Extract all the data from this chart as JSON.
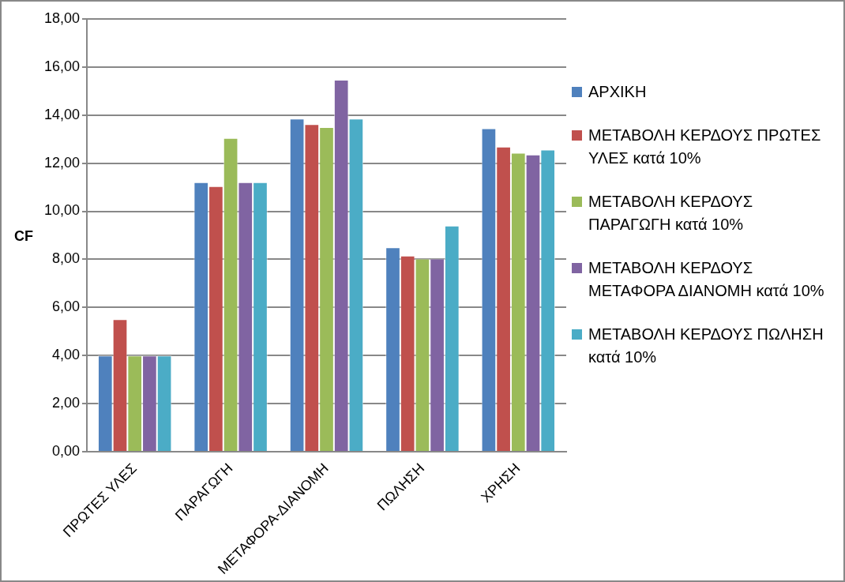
{
  "chart_data": {
    "type": "bar",
    "ylabel": "CF",
    "categories": [
      "ΠΡΩΤΕΣ ΥΛΕΣ",
      "ΠΑΡΑΓΩΓΗ",
      "ΜΕΤΑΦΟΡΑ-ΔΙΑΝΟΜΗ",
      "ΠΩΛΗΣΗ",
      "ΧΡΗΣΗ"
    ],
    "series": [
      {
        "name": "ΑΡΧΙΚΗ",
        "color": "#4f81bd",
        "values": [
          4.0,
          11.21,
          13.85,
          8.5,
          13.45
        ]
      },
      {
        "name": "ΜΕΤΑΒΟΛΗ ΚΕΡΔΟΥΣ ΠΡΩΤΕΣ ΥΛΕΣ κατά 10%",
        "color": "#c0504d",
        "values": [
          5.51,
          11.04,
          13.62,
          8.15,
          12.69
        ]
      },
      {
        "name": "ΜΕΤΑΒΟΛΗ ΚΕΡΔΟΥΣ ΠΑΡΑΓΩΓΗ κατά 10%",
        "color": "#9bbb59",
        "values": [
          4.0,
          13.05,
          13.5,
          8.03,
          12.43
        ]
      },
      {
        "name": "ΜΕΤΑΒΟΛΗ ΚΕΡΔΟΥΣ ΜΕΤΑΦΟΡΑ ΔΙΑΝΟΜΗ κατά 10%",
        "color": "#8064a2",
        "values": [
          4.0,
          11.21,
          15.47,
          8.03,
          12.36
        ]
      },
      {
        "name": "ΜΕΤΑΒΟΛΗ ΚΕΡΔΟΥΣ ΠΩΛΗΣΗ κατά 10%",
        "color": "#4bacc6",
        "values": [
          4.0,
          11.21,
          13.85,
          9.4,
          12.56
        ]
      }
    ],
    "ylim": [
      0,
      18
    ],
    "yticks": [
      {
        "value": 0,
        "label": "0,00"
      },
      {
        "value": 2,
        "label": "2,00"
      },
      {
        "value": 4,
        "label": "4,00"
      },
      {
        "value": 6,
        "label": "6,00"
      },
      {
        "value": 8,
        "label": "8,00"
      },
      {
        "value": 10,
        "label": "10,00"
      },
      {
        "value": 12,
        "label": "12,00"
      },
      {
        "value": 14,
        "label": "14,00"
      },
      {
        "value": 16,
        "label": "16,00"
      },
      {
        "value": 18,
        "label": "18,00"
      }
    ],
    "grid": "y",
    "legend": "right"
  }
}
